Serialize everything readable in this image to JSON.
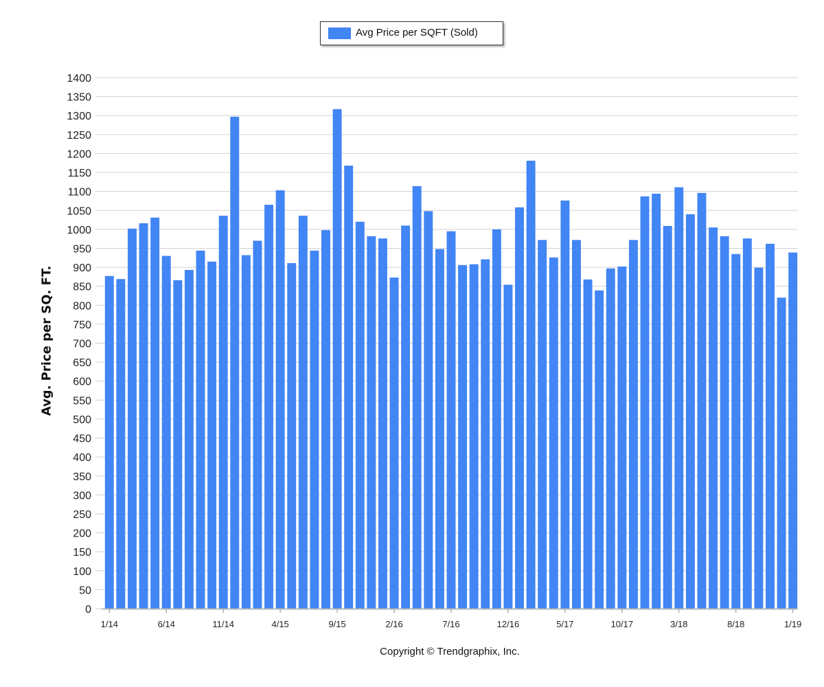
{
  "legend": {
    "label": "Avg Price per SQFT (Sold)",
    "color": "#4285f4"
  },
  "copyright": "Copyright © Trendgraphix, Inc.",
  "chart_data": {
    "type": "bar",
    "ylabel": "Avg. Price per SQ. FT.",
    "xlabel": "",
    "ylim": [
      0,
      1400
    ],
    "ytick_step": 50,
    "grid": true,
    "legend_position": "top-center",
    "bar_color": "#4285f4",
    "x_tick_labels": [
      "1/14",
      "6/14",
      "11/14",
      "4/15",
      "9/15",
      "2/16",
      "7/16",
      "12/16",
      "5/17",
      "10/17",
      "3/18",
      "8/18",
      "1/19"
    ],
    "categories": [
      "1/14",
      "2/14",
      "3/14",
      "4/14",
      "5/14",
      "6/14",
      "7/14",
      "8/14",
      "9/14",
      "10/14",
      "11/14",
      "12/14",
      "1/15",
      "2/15",
      "3/15",
      "4/15",
      "5/15",
      "6/15",
      "7/15",
      "8/15",
      "9/15",
      "10/15",
      "11/15",
      "12/15",
      "1/16",
      "2/16",
      "3/16",
      "4/16",
      "5/16",
      "6/16",
      "7/16",
      "8/16",
      "9/16",
      "10/16",
      "11/16",
      "12/16",
      "1/17",
      "2/17",
      "3/17",
      "4/17",
      "5/17",
      "6/17",
      "7/17",
      "8/17",
      "9/17",
      "10/17",
      "11/17",
      "12/17",
      "1/18",
      "2/18",
      "3/18",
      "4/18",
      "5/18",
      "6/18",
      "7/18",
      "8/18",
      "9/18",
      "10/18",
      "11/18",
      "12/18",
      "1/19"
    ],
    "series": [
      {
        "name": "Avg Price per SQFT (Sold)",
        "values": [
          877,
          869,
          1002,
          1016,
          1031,
          930,
          866,
          893,
          944,
          915,
          1036,
          1297,
          932,
          970,
          1065,
          1103,
          911,
          1036,
          944,
          998,
          1317,
          1168,
          1020,
          982,
          976,
          873,
          1010,
          1114,
          1048,
          948,
          995,
          906,
          908,
          921,
          1000,
          854,
          1058,
          1181,
          972,
          926,
          1076,
          972,
          868,
          839,
          897,
          902,
          972,
          1087,
          1094,
          1009,
          1111,
          1040,
          1096,
          1005,
          982,
          935,
          976,
          899,
          962,
          820,
          939
        ]
      }
    ]
  }
}
